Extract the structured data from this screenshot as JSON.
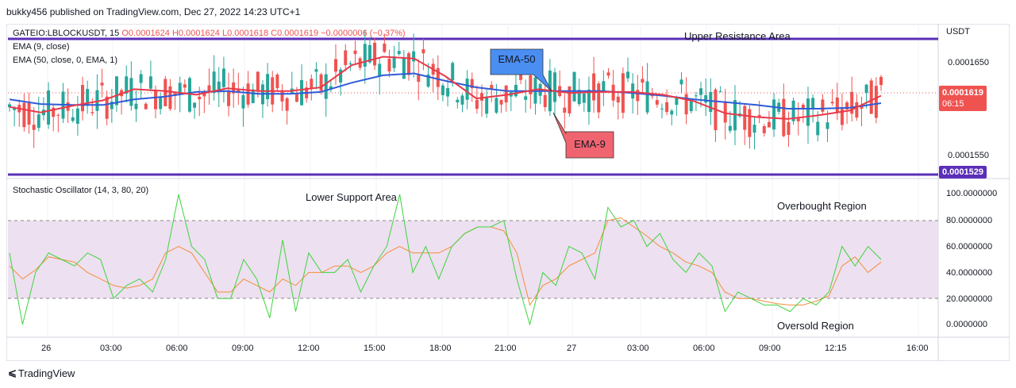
{
  "header": {
    "text": "bukky456 published on TradingView.com, Dec 27, 2022 14:23 UTC+1"
  },
  "price_pane": {
    "symbol_line": {
      "symbol": "GATEIO:LBLOCKUSDT, 15",
      "ohlc": "O0.0001624 H0.0001624 L0.0001618 C0.0001619 −0.0000006 (−0.37%)"
    },
    "ema9_label": "EMA (9, close)",
    "ema50_label": "EMA (50, close, 0, EMA, 1)",
    "currency": "USDT",
    "price_ticks": [
      "0.0001650",
      "0.0001550"
    ],
    "last_price_tag": {
      "price": "0.0001619",
      "countdown": "06:15",
      "color": "#ef5350"
    },
    "support_tag": {
      "price": "0.0001529",
      "color": "#5b2fb8"
    },
    "annotations": {
      "upper": "Upper Resistance Area",
      "ema50": "EMA-50",
      "ema9": "EMA-9"
    },
    "colors": {
      "ema9": "#e8394a",
      "ema50": "#2f5bd8",
      "up": "#26a69a",
      "down": "#ef5350",
      "level": "#5b2fb8"
    }
  },
  "osc_pane": {
    "label": "Stochastic Oscillator (14, 3, 80, 20)",
    "ticks": [
      "100.0000000",
      "80.0000000",
      "60.0000000",
      "40.0000000",
      "20.0000000",
      "0.0000000"
    ],
    "annotations": {
      "lower": "Lower Support Area",
      "overbought": "Overbought Region",
      "oversold": "Oversold Region"
    },
    "colors": {
      "k": "#3ed43e",
      "d": "#f58d3a",
      "band": "#ede0f0"
    }
  },
  "time_axis": {
    "labels": [
      "26",
      "03:00",
      "06:00",
      "09:00",
      "12:00",
      "15:00",
      "18:00",
      "21:00",
      "27",
      "03:00",
      "06:00",
      "09:00",
      "12:15",
      "16:00"
    ]
  },
  "footer": {
    "brand": "TradingView"
  },
  "chart_data": {
    "type": "candlestick",
    "price_axis": {
      "unit": "USDT",
      "visible_ticks": [
        0.000165,
        0.000155
      ]
    },
    "levels": {
      "resistance": 0.0001666,
      "support": 0.0001529
    },
    "last": {
      "open": 0.0001624,
      "high": 0.0001624,
      "low": 0.0001618,
      "close": 0.0001619,
      "change": -6e-07,
      "change_pct": -0.37
    },
    "ema9": [
      0.0001605,
      0.0001599,
      0.0001606,
      0.0001612,
      0.0001624,
      0.0001622,
      0.0001618,
      0.0001625,
      0.0001622,
      0.0001622,
      0.0001626,
      0.000165,
      0.0001659,
      0.0001657,
      0.0001638,
      0.0001614,
      0.0001618,
      0.0001624,
      0.000162,
      0.0001621,
      0.0001621,
      0.0001618,
      0.0001611,
      0.0001598,
      0.0001594,
      0.0001592,
      0.0001596,
      0.0001601,
      0.0001617
    ],
    "ema50": [
      0.0001613,
      0.0001608,
      0.0001607,
      0.0001607,
      0.0001613,
      0.0001616,
      0.0001621,
      0.0001622,
      0.0001619,
      0.0001619,
      0.0001621,
      0.0001631,
      0.0001639,
      0.0001641,
      0.0001633,
      0.0001626,
      0.0001622,
      0.0001622,
      0.0001622,
      0.0001622,
      0.000162,
      0.0001617,
      0.0001613,
      0.000161,
      0.0001607,
      0.0001603,
      0.0001603,
      0.0001604,
      0.0001609
    ],
    "stochastic": {
      "upper_band": 80,
      "lower_band": 20,
      "k": [
        55,
        0,
        40,
        55,
        50,
        45,
        55,
        50,
        20,
        30,
        35,
        25,
        50,
        100,
        60,
        50,
        20,
        20,
        50,
        35,
        5,
        65,
        10,
        55,
        40,
        40,
        50,
        25,
        45,
        60,
        100,
        40,
        60,
        35,
        60,
        70,
        75,
        75,
        80,
        35,
        0,
        40,
        30,
        60,
        55,
        35,
        90,
        75,
        80,
        60,
        70,
        50,
        40,
        55,
        45,
        10,
        25,
        20,
        15,
        15,
        10,
        20,
        15,
        25,
        60,
        45,
        60,
        50
      ],
      "d": [
        45,
        35,
        42,
        52,
        50,
        48,
        40,
        35,
        30,
        28,
        30,
        35,
        55,
        60,
        55,
        40,
        25,
        25,
        35,
        30,
        25,
        35,
        30,
        40,
        40,
        45,
        45,
        40,
        45,
        55,
        60,
        55,
        55,
        55,
        60,
        70,
        75,
        75,
        72,
        55,
        15,
        30,
        35,
        45,
        50,
        55,
        80,
        82,
        75,
        68,
        60,
        55,
        48,
        45,
        40,
        25,
        20,
        20,
        18,
        16,
        15,
        15,
        18,
        22,
        45,
        52,
        40,
        48
      ]
    }
  }
}
